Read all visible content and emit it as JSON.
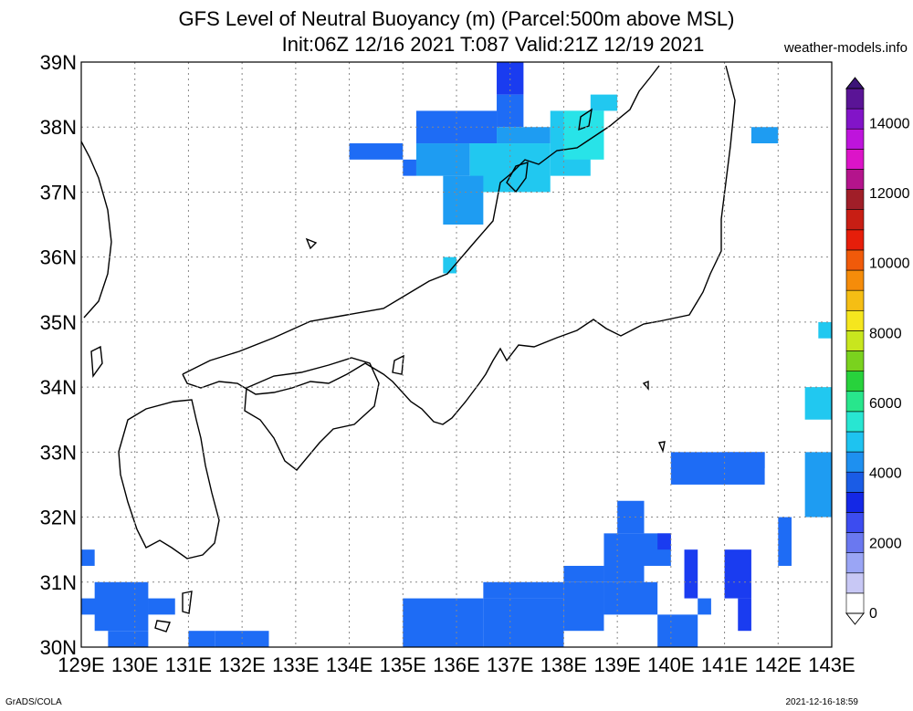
{
  "header": {
    "title_line1": "GFS Level of Neutral Buoyancy (m) (Parcel:500m above MSL)",
    "title_line2": "Init:06Z 12/16 2021 T:087 Valid:21Z 12/19 2021",
    "site": "weather-models.info"
  },
  "footer": {
    "credit": "GrADS/COLA",
    "timestamp": "2021-12-16-18:59"
  },
  "map": {
    "lon_labels": [
      "129E",
      "130E",
      "131E",
      "132E",
      "133E",
      "134E",
      "135E",
      "136E",
      "137E",
      "138E",
      "139E",
      "140E",
      "141E",
      "142E",
      "143E"
    ],
    "lat_labels": [
      "39N",
      "38N",
      "37N",
      "36N",
      "35N",
      "34N",
      "33N",
      "32N",
      "31N",
      "30N"
    ],
    "lon_range": [
      129,
      143
    ],
    "lat_range": [
      30,
      39
    ],
    "grid": "dotted",
    "field_colors": {
      "level_1500": "#1a3cf0",
      "level_2000": "#1e6cf5",
      "level_2500": "#1e9cf2",
      "level_3000": "#21c8f0",
      "level_3500": "#28e3e8"
    }
  },
  "colorbar": {
    "labels": [
      "0",
      "2000",
      "4000",
      "6000",
      "8000",
      "10000",
      "12000",
      "14000"
    ],
    "colors": [
      "#ffffff",
      "#c8c8f5",
      "#9aa5f5",
      "#6a78f0",
      "#3c4cf0",
      "#1428e6",
      "#1a5ce6",
      "#1e90f0",
      "#1ec3f0",
      "#28e6d2",
      "#28e68c",
      "#28d23c",
      "#7ad21e",
      "#c8e61e",
      "#f5e61e",
      "#f5be14",
      "#f58c0a",
      "#f05a0a",
      "#e61e0a",
      "#c81e14",
      "#a01e28",
      "#b4148c",
      "#dc14c8",
      "#be14dc",
      "#8214c8",
      "#5a1496"
    ]
  }
}
